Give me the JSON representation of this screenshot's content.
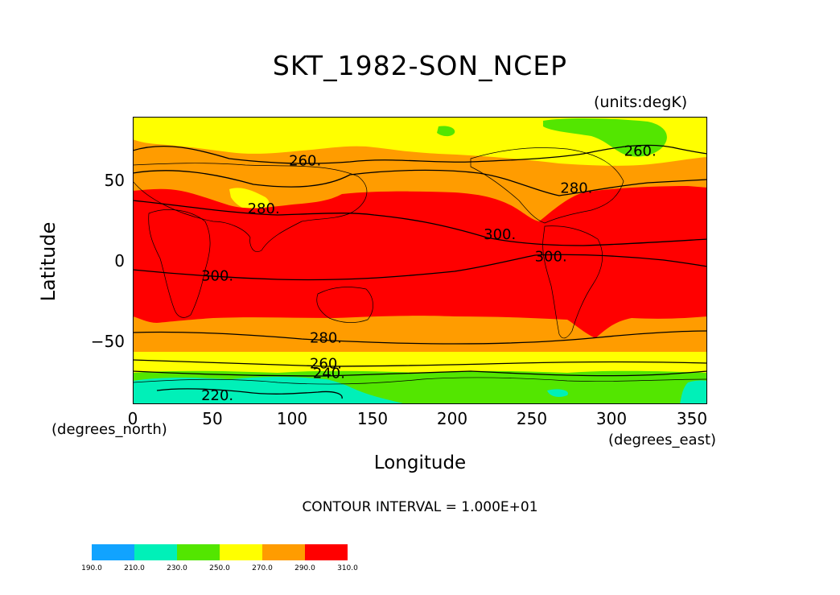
{
  "title": "SKT_1982-SON_NCEP",
  "units_label": "(units:degK)",
  "y_axis": {
    "label": "Latitude",
    "units": "(degrees_north)",
    "ticks": [
      "50",
      "0",
      "−50"
    ],
    "tick_values": [
      50,
      0,
      -50
    ]
  },
  "x_axis": {
    "label": "Longitude",
    "units": "(degrees_east)",
    "ticks": [
      "0",
      "50",
      "100",
      "150",
      "200",
      "250",
      "300",
      "350"
    ],
    "tick_values": [
      0,
      50,
      100,
      150,
      200,
      250,
      300,
      350
    ]
  },
  "contour_interval_text": "CONTOUR INTERVAL = 1.000E+01",
  "contour_labels": [
    {
      "text": "260.",
      "lon": 108,
      "lat": 62
    },
    {
      "text": "260.",
      "lon": 318,
      "lat": 68
    },
    {
      "text": "280.",
      "lon": 278,
      "lat": 45
    },
    {
      "text": "280.",
      "lon": 82,
      "lat": 32
    },
    {
      "text": "300.",
      "lon": 230,
      "lat": 16
    },
    {
      "text": "300.",
      "lon": 262,
      "lat": 2
    },
    {
      "text": "300.",
      "lon": 53,
      "lat": -10
    },
    {
      "text": "280.",
      "lon": 121,
      "lat": -49
    },
    {
      "text": "260.",
      "lon": 121,
      "lat": -65
    },
    {
      "text": "240.",
      "lon": 123,
      "lat": -71
    },
    {
      "text": "220.",
      "lon": 53,
      "lat": -85
    }
  ],
  "colorbar": {
    "levels": [
      "190.0",
      "210.0",
      "230.0",
      "250.0",
      "270.0",
      "290.0",
      "310.0"
    ],
    "colors": [
      "#11a3ff",
      "#00f0b8",
      "#53e600",
      "#ffff00",
      "#ff9c00",
      "#ff0000"
    ]
  },
  "map_ranges": {
    "lon": [
      0,
      360
    ],
    "lat": [
      -90,
      90
    ]
  }
}
